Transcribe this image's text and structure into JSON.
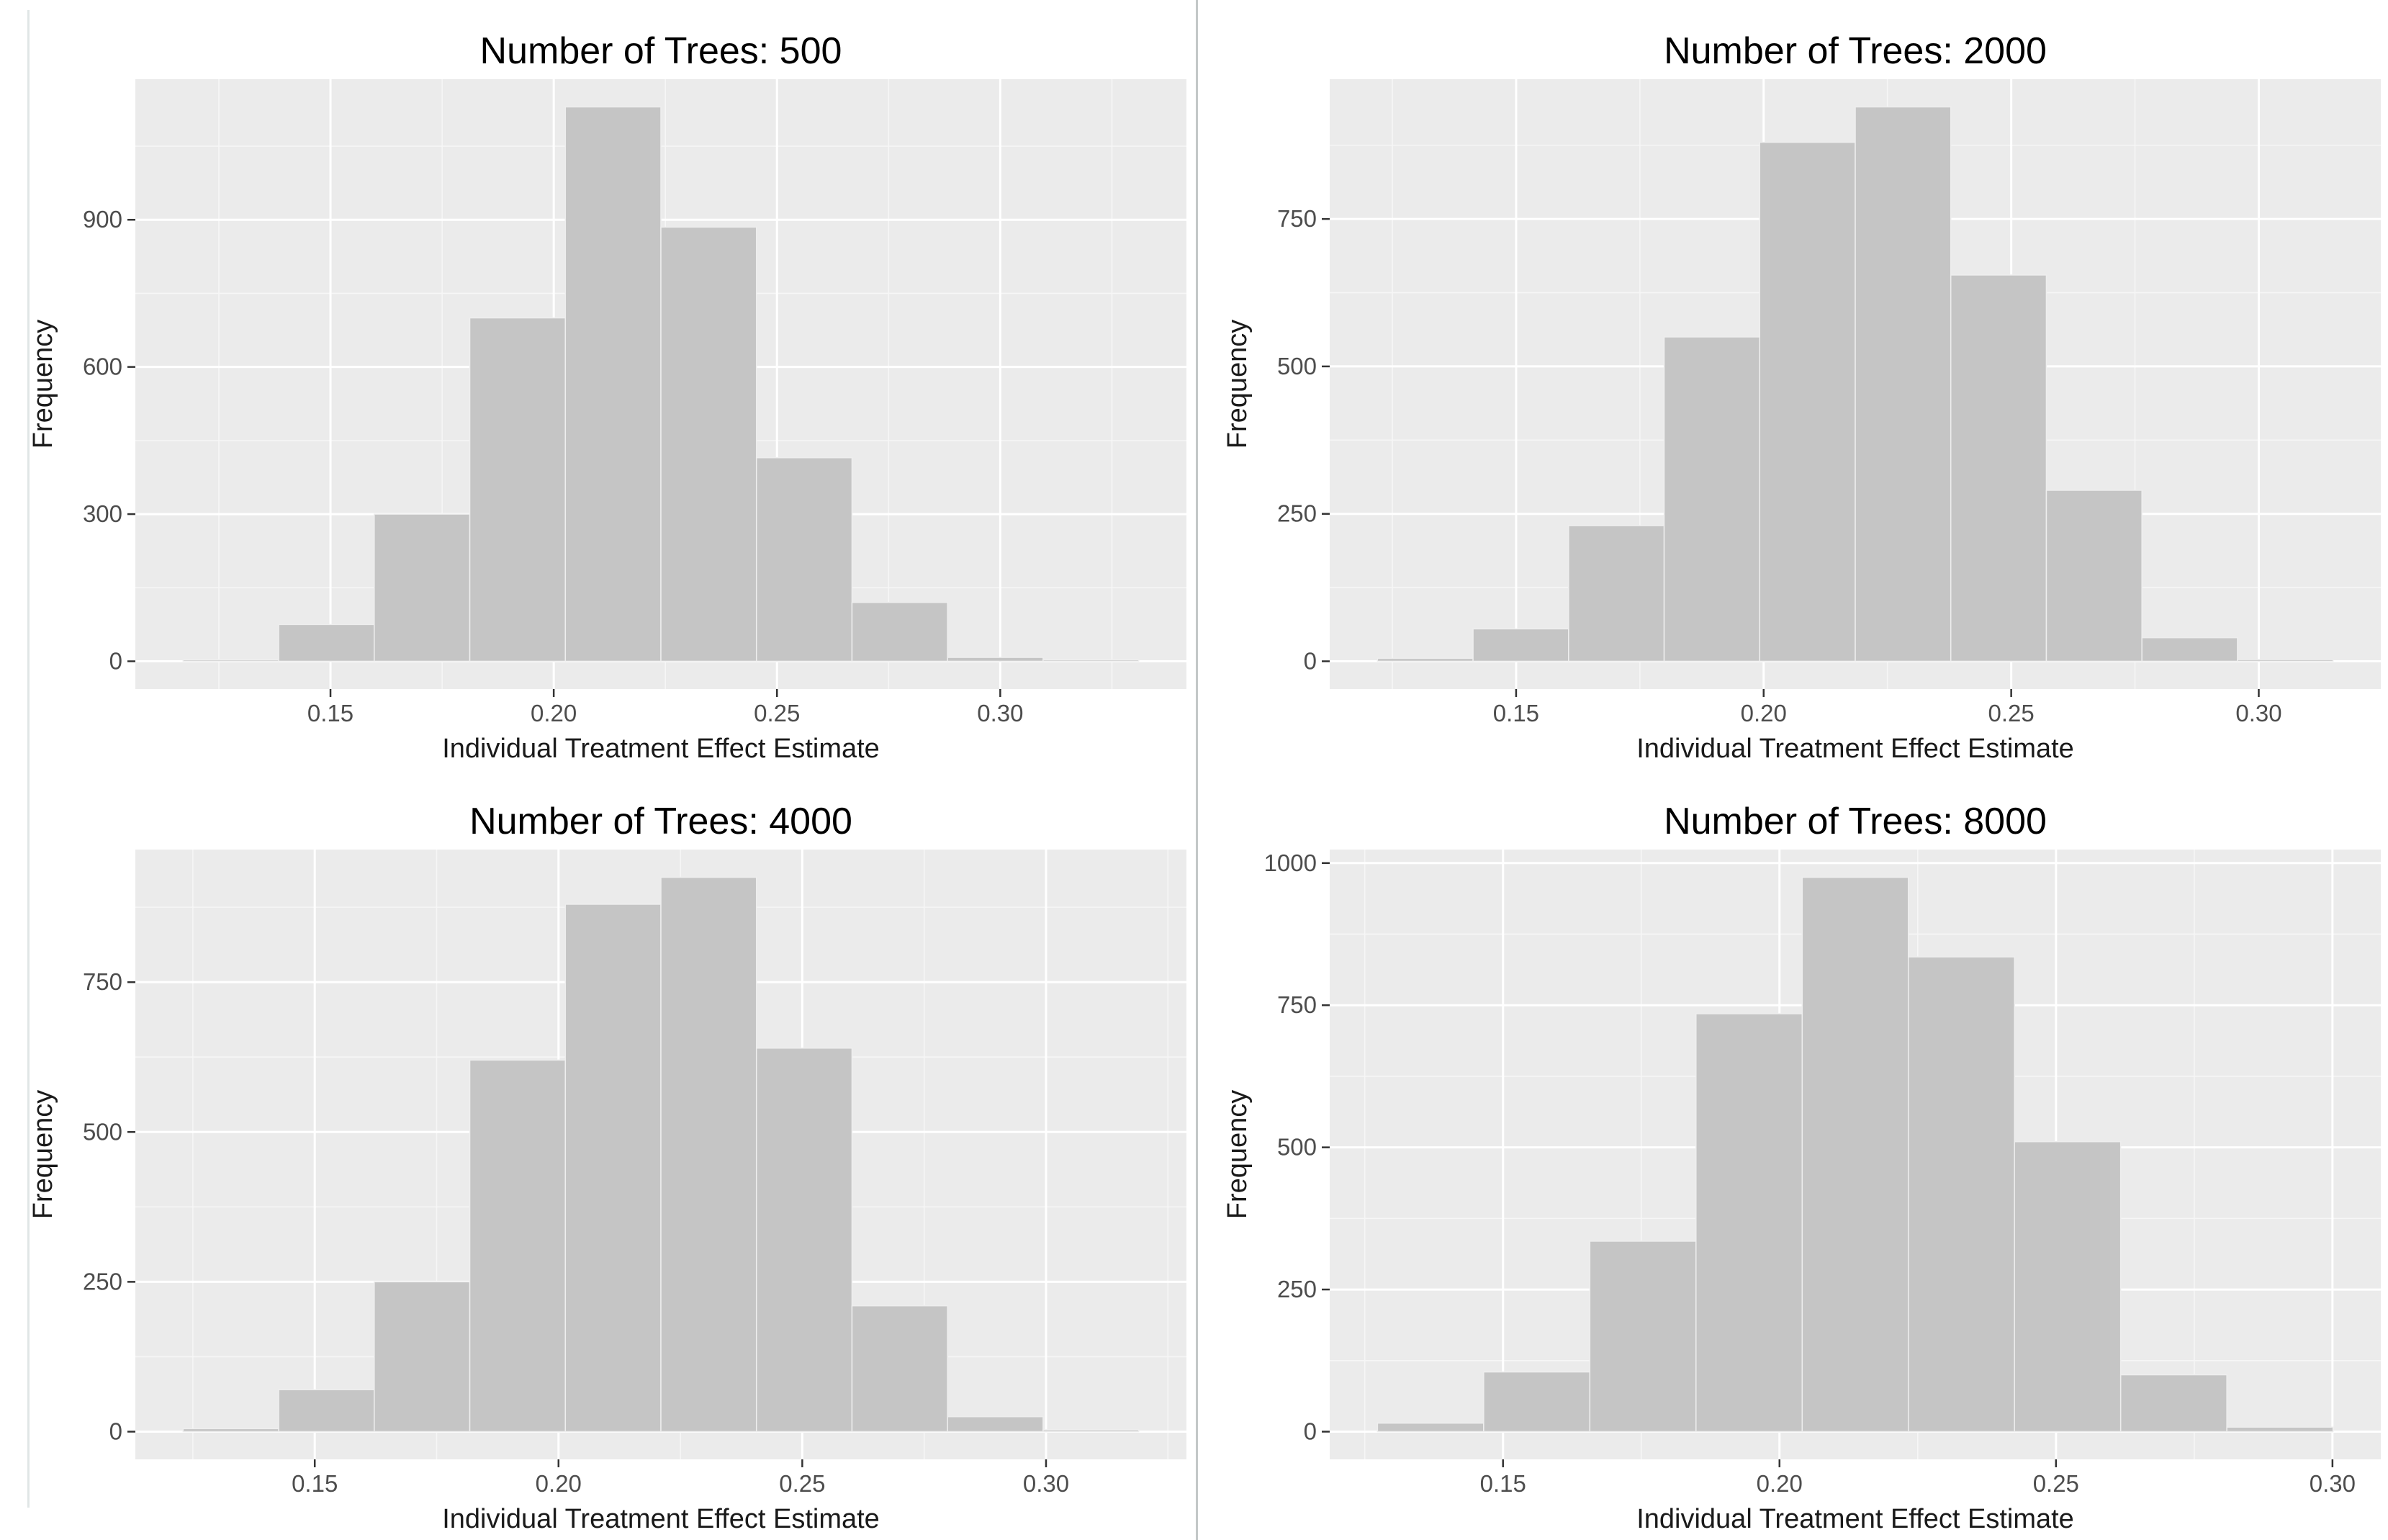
{
  "style": {
    "page_bg": "#ffffff",
    "panel_bg": "#ebebeb",
    "bar_fill": "#c5c5c5",
    "bar_edge": "#eeeeee",
    "grid_major": "#ffffff",
    "grid_minor": "#f6f6f6",
    "tick_mark_color": "#333333",
    "tick_label_color": "#4d4d4d",
    "axis_title_color": "#1a1a1a",
    "title_color": "#000000",
    "divider_color": "#c3c8c8",
    "left_edge_line_color": "#e0e6e6"
  },
  "chart_data": [
    {
      "type": "bar",
      "variant": "histogram",
      "title": "Number of Trees: 500",
      "xlabel": "Individual Treatment Effect Estimate",
      "ylabel": "Frequency",
      "bin_start": 0.117,
      "bin_width": 0.0214,
      "counts": [
        3,
        75,
        300,
        700,
        1130,
        885,
        415,
        120,
        8,
        3
      ],
      "x_ticks": [
        {
          "v": 0.15,
          "label": "0.15"
        },
        {
          "v": 0.2,
          "label": "0.20"
        },
        {
          "v": 0.25,
          "label": "0.25"
        },
        {
          "v": 0.3,
          "label": "0.30"
        }
      ],
      "y_ticks": [
        {
          "v": 0,
          "label": "0"
        },
        {
          "v": 300,
          "label": "300"
        },
        {
          "v": 600,
          "label": "600"
        },
        {
          "v": 900,
          "label": "900"
        }
      ],
      "xlim": [
        0.106,
        0.342
      ],
      "ylim": [
        -57,
        1187
      ],
      "grid": true,
      "legend": "none"
    },
    {
      "type": "bar",
      "variant": "histogram",
      "title": "Number of Trees: 2000",
      "xlabel": "Individual Treatment Effect Estimate",
      "ylabel": "Frequency",
      "bin_start": 0.122,
      "bin_width": 0.0193,
      "counts": [
        5,
        55,
        230,
        550,
        880,
        940,
        655,
        290,
        40,
        3
      ],
      "x_ticks": [
        {
          "v": 0.15,
          "label": "0.15"
        },
        {
          "v": 0.2,
          "label": "0.20"
        },
        {
          "v": 0.25,
          "label": "0.25"
        },
        {
          "v": 0.3,
          "label": "0.30"
        }
      ],
      "y_ticks": [
        {
          "v": 0,
          "label": "0"
        },
        {
          "v": 250,
          "label": "250"
        },
        {
          "v": 500,
          "label": "500"
        },
        {
          "v": 750,
          "label": "750"
        }
      ],
      "xlim": [
        0.112,
        0.325
      ],
      "ylim": [
        -47,
        987
      ],
      "grid": true,
      "legend": "none"
    },
    {
      "type": "bar",
      "variant": "histogram",
      "title": "Number of Trees: 4000",
      "xlabel": "Individual Treatment Effect Estimate",
      "ylabel": "Frequency",
      "bin_start": 0.123,
      "bin_width": 0.0196,
      "counts": [
        5,
        70,
        250,
        620,
        880,
        925,
        640,
        210,
        25,
        3
      ],
      "x_ticks": [
        {
          "v": 0.15,
          "label": "0.15"
        },
        {
          "v": 0.2,
          "label": "0.20"
        },
        {
          "v": 0.25,
          "label": "0.25"
        },
        {
          "v": 0.3,
          "label": "0.30"
        }
      ],
      "y_ticks": [
        {
          "v": 0,
          "label": "0"
        },
        {
          "v": 250,
          "label": "250"
        },
        {
          "v": 500,
          "label": "500"
        },
        {
          "v": 750,
          "label": "750"
        }
      ],
      "xlim": [
        0.113,
        0.329
      ],
      "ylim": [
        -46,
        971
      ],
      "grid": true,
      "legend": "none"
    },
    {
      "type": "bar",
      "variant": "histogram",
      "title": "Number of Trees: 8000",
      "xlabel": "Individual Treatment Effect Estimate",
      "ylabel": "Frequency",
      "bin_start": 0.1273,
      "bin_width": 0.0192,
      "counts": [
        15,
        105,
        335,
        735,
        975,
        835,
        510,
        100,
        8
      ],
      "x_ticks": [
        {
          "v": 0.15,
          "label": "0.15"
        },
        {
          "v": 0.2,
          "label": "0.20"
        },
        {
          "v": 0.25,
          "label": "0.25"
        },
        {
          "v": 0.3,
          "label": "0.30"
        }
      ],
      "y_ticks": [
        {
          "v": 0,
          "label": "0"
        },
        {
          "v": 250,
          "label": "250"
        },
        {
          "v": 500,
          "label": "500"
        },
        {
          "v": 750,
          "label": "750"
        },
        {
          "v": 1000,
          "label": "1000"
        }
      ],
      "xlim": [
        0.119,
        0.309
      ],
      "ylim": [
        -49,
        1024
      ],
      "grid": true,
      "legend": "none"
    }
  ]
}
